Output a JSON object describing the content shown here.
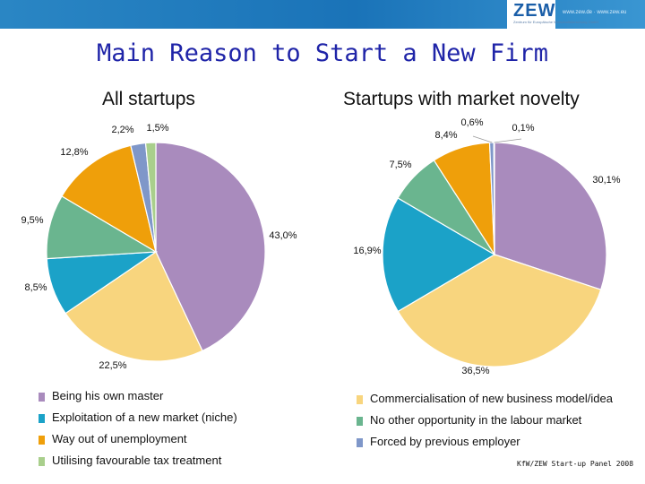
{
  "header": {
    "logo": "ZEW",
    "logo_subtitle": "Zentrum für Europäische Wirtschaftsforschung GmbH",
    "url": "www.zew.de · www.zew.eu",
    "brand_color": "#1a73b8"
  },
  "title": "Main Reason to Start a New Firm",
  "source": "KfW/ZEW Start-up Panel 2008",
  "colors": {
    "own_master": "#a98bbd",
    "commercialisation": "#f8d57e",
    "exploitation": "#1ba2c8",
    "no_other": "#6ab58f",
    "unemployment": "#ef9f0a",
    "forced": "#7f97c9",
    "tax": "#a9cf8c"
  },
  "legend": [
    {
      "key": "own_master",
      "label": "Being his own master"
    },
    {
      "key": "commercialisation",
      "label": "Commercialisation of new business model/idea"
    },
    {
      "key": "exploitation",
      "label": "Exploitation of a new market (niche)"
    },
    {
      "key": "no_other",
      "label": "No other opportunity in the labour market"
    },
    {
      "key": "unemployment",
      "label": "Way out of unemployment"
    },
    {
      "key": "forced",
      "label": "Forced by previous employer"
    },
    {
      "key": "tax",
      "label": "Utilising favourable tax treatment"
    }
  ],
  "chart_data": [
    {
      "type": "pie",
      "title": "All startups",
      "slices": [
        {
          "key": "own_master",
          "value": 43.0,
          "label": "43,0%"
        },
        {
          "key": "commercialisation",
          "value": 22.5,
          "label": "22,5%"
        },
        {
          "key": "exploitation",
          "value": 8.5,
          "label": "8,5%"
        },
        {
          "key": "no_other",
          "value": 9.5,
          "label": "9,5%"
        },
        {
          "key": "unemployment",
          "value": 12.8,
          "label": "12,8%"
        },
        {
          "key": "forced",
          "value": 2.2,
          "label": "2,2%"
        },
        {
          "key": "tax",
          "value": 1.5,
          "label": "1,5%"
        }
      ]
    },
    {
      "type": "pie",
      "title": "Startups with market novelty",
      "slices": [
        {
          "key": "own_master",
          "value": 30.1,
          "label": "30,1%"
        },
        {
          "key": "commercialisation",
          "value": 36.5,
          "label": "36,5%"
        },
        {
          "key": "exploitation",
          "value": 16.9,
          "label": "16,9%"
        },
        {
          "key": "no_other",
          "value": 7.5,
          "label": "7,5%"
        },
        {
          "key": "unemployment",
          "value": 8.4,
          "label": "8,4%"
        },
        {
          "key": "forced",
          "value": 0.6,
          "label": "0,6%"
        },
        {
          "key": "tax",
          "value": 0.1,
          "label": "0,1%"
        }
      ]
    }
  ]
}
